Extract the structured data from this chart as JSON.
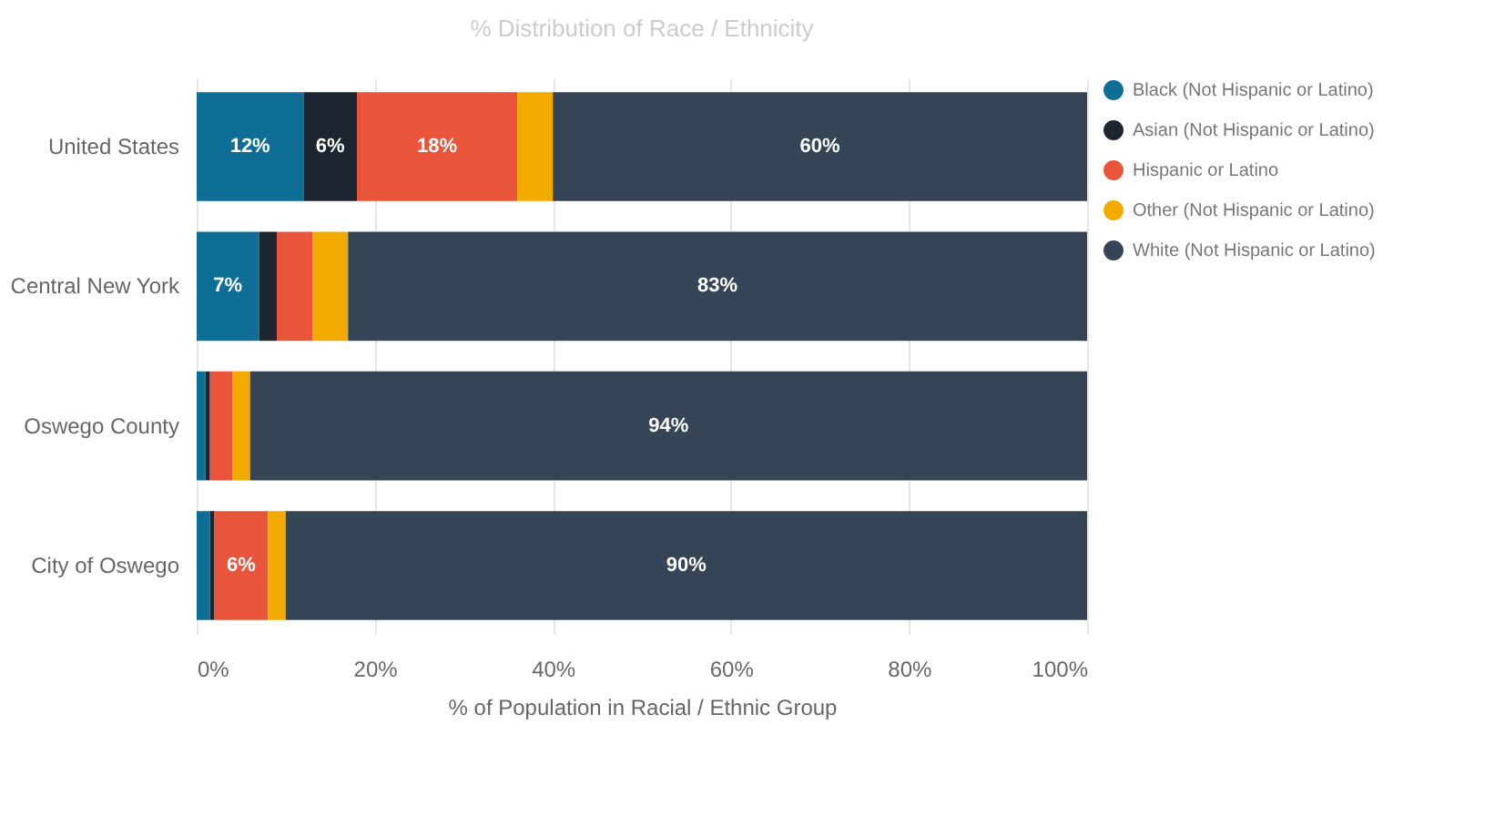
{
  "chart_data": {
    "type": "bar",
    "orientation": "horizontal",
    "stacked": true,
    "title": "% Distribution of Race / Ethnicity",
    "xlabel": "% of Population in Racial / Ethnic Group",
    "categories": [
      "United States",
      "Central New York",
      "Oswego County",
      "City of Oswego"
    ],
    "series": [
      {
        "name": "Black (Not Hispanic or Latino)",
        "color": "#0e6e96",
        "values": [
          12,
          7,
          1,
          1.5
        ],
        "value_labels": [
          "12%",
          "7%",
          null,
          null
        ]
      },
      {
        "name": "Asian (Not Hispanic or Latino)",
        "color": "#1c2530",
        "values": [
          6,
          2,
          0.5,
          0.5
        ],
        "value_labels": [
          "6%",
          null,
          null,
          null
        ]
      },
      {
        "name": "Hispanic or Latino",
        "color": "#e8553b",
        "values": [
          18,
          4,
          2.5,
          6
        ],
        "value_labels": [
          "18%",
          null,
          null,
          "6%"
        ]
      },
      {
        "name": "Other (Not Hispanic or Latino)",
        "color": "#f2a900",
        "values": [
          4,
          4,
          2,
          2
        ],
        "value_labels": [
          null,
          null,
          null,
          null
        ]
      },
      {
        "name": "White (Not Hispanic or Latino)",
        "color": "#354556",
        "values": [
          60,
          83,
          94,
          90
        ],
        "value_labels": [
          "60%",
          "83%",
          "94%",
          "90%"
        ]
      }
    ],
    "xlim": [
      0,
      100
    ],
    "xticks": [
      {
        "value": 0,
        "label": "0%"
      },
      {
        "value": 20,
        "label": "20%"
      },
      {
        "value": 40,
        "label": "40%"
      },
      {
        "value": 60,
        "label": "60%"
      },
      {
        "value": 80,
        "label": "80%"
      },
      {
        "value": 100,
        "label": "100%"
      }
    ],
    "grid": "x",
    "legend": "right"
  }
}
